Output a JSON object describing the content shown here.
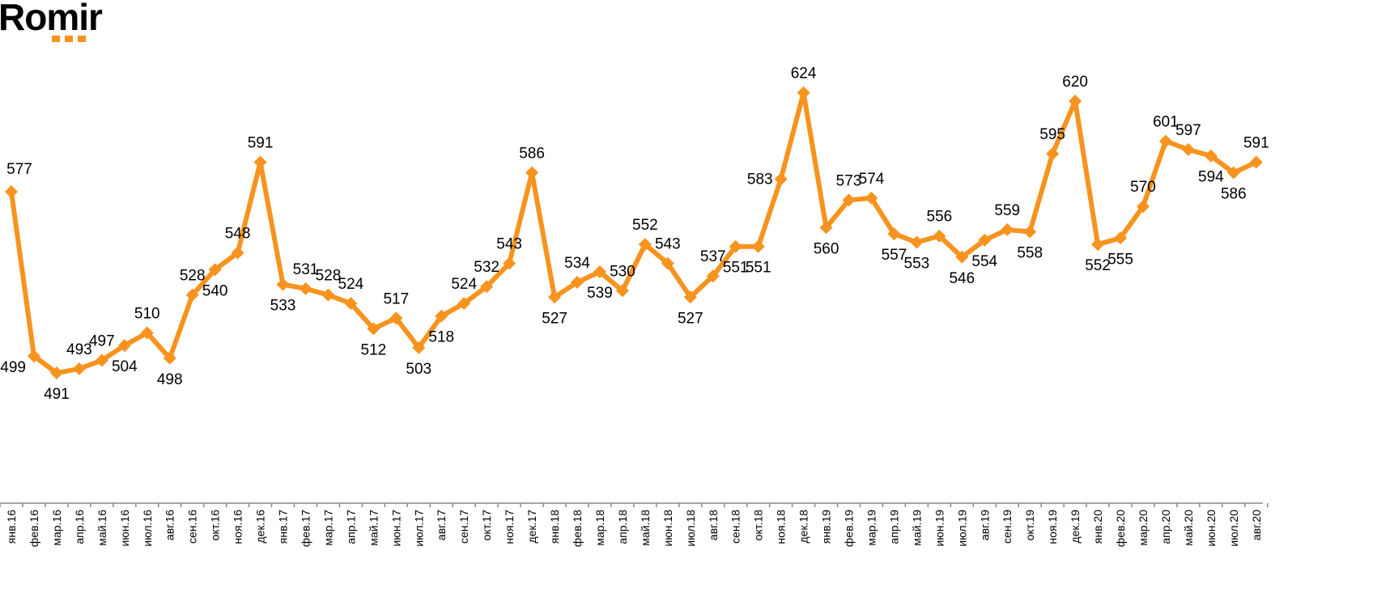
{
  "logo": {
    "text": "Romir",
    "accent_color": "#f7931e"
  },
  "chart_data": {
    "type": "line",
    "title": "",
    "xlabel": "",
    "ylabel": "",
    "grid": false,
    "line_color": "#f7931e",
    "marker": "diamond",
    "categories": [
      "янв.16",
      "фев.16",
      "мар.16",
      "апр.16",
      "май.16",
      "июн.16",
      "июл.16",
      "авг.16",
      "сен.16",
      "окт.16",
      "ноя.16",
      "дек.16",
      "янв.17",
      "фев.17",
      "мар.17",
      "апр.17",
      "май.17",
      "июн.17",
      "июл.17",
      "авг.17",
      "сен.17",
      "окт.17",
      "ноя.17",
      "дек.17",
      "янв.18",
      "фев.18",
      "мар.18",
      "апр.18",
      "май.18",
      "июн.18",
      "июл.18",
      "авг.18",
      "сен.18",
      "окт.18",
      "ноя.18",
      "дек.18",
      "янв.19",
      "фев.19",
      "мар.19",
      "апр.19",
      "май.19",
      "июн.19",
      "июл.19",
      "авг.19",
      "сен.19",
      "окт.19",
      "ноя.19",
      "дек.19",
      "янв.20",
      "фев.20",
      "мар.20",
      "апр.20",
      "май.20",
      "июн.20",
      "июл.20",
      "авг.20"
    ],
    "values": [
      577,
      499,
      491,
      493,
      497,
      504,
      510,
      498,
      528,
      540,
      548,
      591,
      533,
      531,
      528,
      524,
      512,
      517,
      503,
      518,
      524,
      532,
      543,
      586,
      527,
      534,
      539,
      530,
      552,
      543,
      527,
      537,
      551,
      551,
      583,
      624,
      560,
      573,
      574,
      557,
      553,
      556,
      546,
      554,
      559,
      558,
      595,
      620,
      552,
      555,
      570,
      601,
      597,
      594,
      586,
      591
    ]
  }
}
